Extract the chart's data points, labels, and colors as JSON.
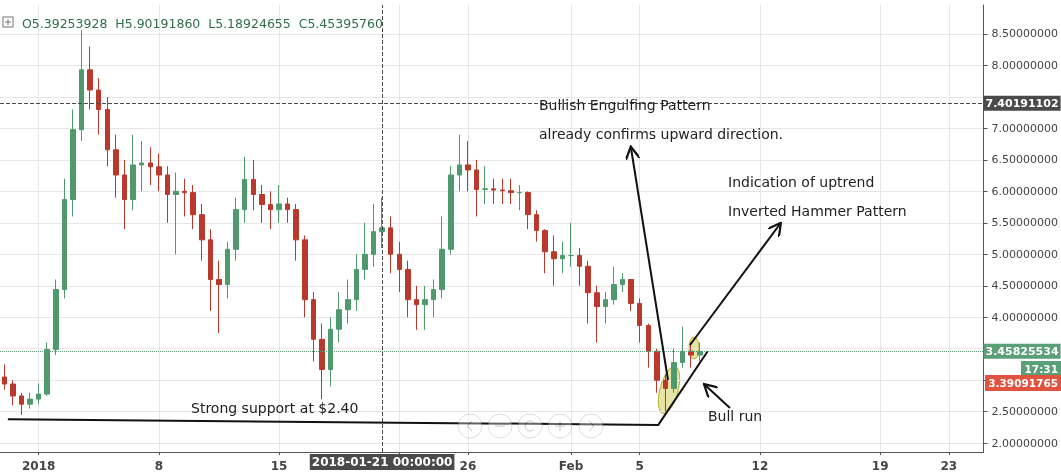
{
  "chart_data": {
    "type": "candlestick",
    "x": [
      "2017-12-30T00:00",
      "2017-12-30T12:00",
      "2017-12-31T00:00",
      "2017-12-31T12:00",
      "2018-01-01T00:00",
      "2018-01-01T12:00",
      "2018-01-02T00:00",
      "2018-01-02T12:00",
      "2018-01-03T00:00",
      "2018-01-03T12:00",
      "2018-01-04T00:00",
      "2018-01-04T12:00",
      "2018-01-05T00:00",
      "2018-01-05T12:00",
      "2018-01-06T00:00",
      "2018-01-06T12:00",
      "2018-01-07T00:00",
      "2018-01-07T12:00",
      "2018-01-08T00:00",
      "2018-01-08T12:00",
      "2018-01-09T00:00",
      "2018-01-09T12:00",
      "2018-01-10T00:00",
      "2018-01-10T12:00",
      "2018-01-11T00:00",
      "2018-01-11T12:00",
      "2018-01-12T00:00",
      "2018-01-12T12:00",
      "2018-01-13T00:00",
      "2018-01-13T12:00",
      "2018-01-14T00:00",
      "2018-01-14T12:00",
      "2018-01-15T00:00",
      "2018-01-15T12:00",
      "2018-01-16T00:00",
      "2018-01-16T12:00",
      "2018-01-17T00:00",
      "2018-01-17T12:00",
      "2018-01-18T00:00",
      "2018-01-18T12:00",
      "2018-01-19T00:00",
      "2018-01-19T12:00",
      "2018-01-20T00:00",
      "2018-01-20T12:00",
      "2018-01-21T00:00",
      "2018-01-21T12:00",
      "2018-01-22T00:00",
      "2018-01-22T12:00",
      "2018-01-23T00:00",
      "2018-01-23T12:00",
      "2018-01-24T00:00",
      "2018-01-24T12:00",
      "2018-01-25T00:00",
      "2018-01-25T12:00",
      "2018-01-26T00:00",
      "2018-01-26T12:00",
      "2018-01-27T00:00",
      "2018-01-27T12:00",
      "2018-01-28T00:00",
      "2018-01-28T12:00",
      "2018-01-29T00:00",
      "2018-01-29T12:00",
      "2018-01-30T00:00",
      "2018-01-30T12:00",
      "2018-01-31T00:00",
      "2018-01-31T12:00",
      "2018-02-01T00:00",
      "2018-02-01T12:00",
      "2018-02-02T00:00",
      "2018-02-02T12:00",
      "2018-02-03T00:00",
      "2018-02-03T12:00",
      "2018-02-04T00:00",
      "2018-02-04T12:00",
      "2018-02-05T00:00",
      "2018-02-05T12:00",
      "2018-02-06T00:00",
      "2018-02-06T12:00",
      "2018-02-07T00:00",
      "2018-02-07T12:00",
      "2018-02-08T00:00",
      "2018-02-08T12:00"
    ],
    "ohlc": [
      [
        3.05,
        3.25,
        2.85,
        2.94
      ],
      [
        2.94,
        3.0,
        2.6,
        2.75
      ],
      [
        2.75,
        2.8,
        2.45,
        2.62
      ],
      [
        2.62,
        2.8,
        2.55,
        2.7
      ],
      [
        2.7,
        2.95,
        2.62,
        2.78
      ],
      [
        2.78,
        3.6,
        2.75,
        3.49
      ],
      [
        3.49,
        4.6,
        3.4,
        4.44
      ],
      [
        4.44,
        6.2,
        4.3,
        5.87
      ],
      [
        5.87,
        7.3,
        5.6,
        6.98
      ],
      [
        6.98,
        8.56,
        6.8,
        7.93
      ],
      [
        7.93,
        8.3,
        7.3,
        7.61
      ],
      [
        7.61,
        7.8,
        6.9,
        7.3
      ],
      [
        7.3,
        7.5,
        6.4,
        6.66
      ],
      [
        6.66,
        6.9,
        5.9,
        6.26
      ],
      [
        6.26,
        6.5,
        5.4,
        5.87
      ],
      [
        5.87,
        6.9,
        5.7,
        6.42
      ],
      [
        6.42,
        6.8,
        6.0,
        6.45
      ],
      [
        6.45,
        6.7,
        6.1,
        6.39
      ],
      [
        6.39,
        6.6,
        6.0,
        6.26
      ],
      [
        6.26,
        6.4,
        5.5,
        5.95
      ],
      [
        5.95,
        6.3,
        5.0,
        6.0
      ],
      [
        6.0,
        6.2,
        5.6,
        5.98
      ],
      [
        5.98,
        6.1,
        5.4,
        5.63
      ],
      [
        5.63,
        5.8,
        4.9,
        5.23
      ],
      [
        5.23,
        5.4,
        4.1,
        4.6
      ],
      [
        4.6,
        4.9,
        3.75,
        4.52
      ],
      [
        4.52,
        5.2,
        4.3,
        5.08
      ],
      [
        5.08,
        5.9,
        4.9,
        5.71
      ],
      [
        5.71,
        6.55,
        5.5,
        6.19
      ],
      [
        6.19,
        6.5,
        5.7,
        5.95
      ],
      [
        5.95,
        6.1,
        5.5,
        5.79
      ],
      [
        5.79,
        6.0,
        5.4,
        5.71
      ],
      [
        5.71,
        6.1,
        5.5,
        5.8
      ],
      [
        5.8,
        5.9,
        5.5,
        5.71
      ],
      [
        5.71,
        5.8,
        4.9,
        5.23
      ],
      [
        5.23,
        5.3,
        4.0,
        4.28
      ],
      [
        4.28,
        4.4,
        3.3,
        3.65
      ],
      [
        3.65,
        3.9,
        2.7,
        3.17
      ],
      [
        3.17,
        4.0,
        2.9,
        3.81
      ],
      [
        3.81,
        4.4,
        3.6,
        4.12
      ],
      [
        4.12,
        4.6,
        3.9,
        4.28
      ],
      [
        4.28,
        5.0,
        4.1,
        4.76
      ],
      [
        4.76,
        5.5,
        4.6,
        5.0
      ],
      [
        5.0,
        5.8,
        4.8,
        5.36
      ],
      [
        5.36,
        5.9,
        5.1,
        5.42
      ],
      [
        5.42,
        5.6,
        4.7,
        5.0
      ],
      [
        5.0,
        5.2,
        4.4,
        4.76
      ],
      [
        4.76,
        4.9,
        4.0,
        4.28
      ],
      [
        4.28,
        4.5,
        3.8,
        4.2
      ],
      [
        4.2,
        4.5,
        3.8,
        4.28
      ],
      [
        4.28,
        4.6,
        4.0,
        4.44
      ],
      [
        4.44,
        5.6,
        4.3,
        5.08
      ],
      [
        5.08,
        6.4,
        5.0,
        6.26
      ],
      [
        6.26,
        6.9,
        6.0,
        6.42
      ],
      [
        6.42,
        6.8,
        6.0,
        6.34
      ],
      [
        6.34,
        6.5,
        5.6,
        6.03
      ],
      [
        6.03,
        6.4,
        5.8,
        6.04
      ],
      [
        6.04,
        6.2,
        5.8,
        6.02
      ],
      [
        6.02,
        6.2,
        5.8,
        6.01
      ],
      [
        6.01,
        6.2,
        5.8,
        5.98
      ],
      [
        5.98,
        6.1,
        5.7,
        5.98
      ],
      [
        5.98,
        6.0,
        5.4,
        5.63
      ],
      [
        5.63,
        5.7,
        5.2,
        5.38
      ],
      [
        5.38,
        5.4,
        4.7,
        5.04
      ],
      [
        5.04,
        5.3,
        4.5,
        4.93
      ],
      [
        4.93,
        5.2,
        4.7,
        4.98
      ],
      [
        4.98,
        5.5,
        4.8,
        4.98
      ],
      [
        4.98,
        5.1,
        4.5,
        4.81
      ],
      [
        4.81,
        4.9,
        3.9,
        4.39
      ],
      [
        4.39,
        4.5,
        3.6,
        4.17
      ],
      [
        4.17,
        4.4,
        3.9,
        4.28
      ],
      [
        4.28,
        4.8,
        4.2,
        4.52
      ],
      [
        4.52,
        4.7,
        4.4,
        4.6
      ],
      [
        4.6,
        4.6,
        4.1,
        4.22
      ],
      [
        4.22,
        4.3,
        3.6,
        3.87
      ],
      [
        3.87,
        3.9,
        3.2,
        3.46
      ],
      [
        3.46,
        3.5,
        2.8,
        3.0
      ],
      [
        3.0,
        3.1,
        2.5,
        2.87
      ],
      [
        2.87,
        3.5,
        2.8,
        3.28
      ],
      [
        3.28,
        3.85,
        3.2,
        3.46
      ],
      [
        3.46,
        3.6,
        3.2,
        3.4
      ],
      [
        3.4,
        3.6,
        3.3,
        3.46
      ]
    ],
    "colors": [
      "#b93a2c",
      "#b93a2c",
      "#b93a2c",
      "#4e9a6c",
      "#4e9a6c",
      "#4e9a6c",
      "#4e9a6c",
      "#4e9a6c",
      "#4e9a6c",
      "#4e9a6c",
      "#b93a2c",
      "#b93a2c",
      "#b93a2c",
      "#b93a2c",
      "#b93a2c",
      "#4e9a6c",
      "#4e9a6c",
      "#b93a2c",
      "#b93a2c",
      "#b93a2c",
      "#4e9a6c",
      "#b93a2c",
      "#b93a2c",
      "#b93a2c",
      "#b93a2c",
      "#b93a2c",
      "#4e9a6c",
      "#4e9a6c",
      "#4e9a6c",
      "#b93a2c",
      "#b93a2c",
      "#b93a2c",
      "#4e9a6c",
      "#b93a2c",
      "#b93a2c",
      "#b93a2c",
      "#b93a2c",
      "#b93a2c",
      "#4e9a6c",
      "#4e9a6c",
      "#4e9a6c",
      "#4e9a6c",
      "#4e9a6c",
      "#4e9a6c",
      "#4e9a6c",
      "#b93a2c",
      "#b93a2c",
      "#b93a2c",
      "#b93a2c",
      "#4e9a6c",
      "#4e9a6c",
      "#4e9a6c",
      "#4e9a6c",
      "#4e9a6c",
      "#b93a2c",
      "#b93a2c",
      "#4e9a6c",
      "#b93a2c",
      "#b93a2c",
      "#b93a2c",
      "#4e9a6c",
      "#b93a2c",
      "#b93a2c",
      "#b93a2c",
      "#b93a2c",
      "#4e9a6c",
      "#4e9a6c",
      "#b93a2c",
      "#b93a2c",
      "#b93a2c",
      "#4e9a6c",
      "#4e9a6c",
      "#4e9a6c",
      "#b93a2c",
      "#b93a2c",
      "#b93a2c",
      "#b93a2c",
      "#b93a2c",
      "#4e9a6c",
      "#4e9a6c",
      "#b93a2c",
      "#4e9a6c"
    ],
    "series": [
      {
        "type": "line",
        "x": [
          "2017-12-30T05:00",
          "2018-02-06T02:00",
          "2018-02-08T23:00"
        ],
        "values": [
          2.38,
          2.29,
          3.46
        ],
        "color": "#111111"
      }
    ],
    "xlim": [
      "2017-12-29T18:00",
      "2018-02-25T00:30"
    ],
    "xticks": [
      {
        "value": "2018-01-01",
        "label": "2018"
      },
      {
        "value": "2018-01-08",
        "label": "8"
      },
      {
        "value": "2018-01-15",
        "label": "15"
      },
      {
        "value": "2018-01-22",
        "label": null
      },
      {
        "value": "2018-01-26",
        "label": "26"
      },
      {
        "value": "2018-02-01",
        "label": "Feb"
      },
      {
        "value": "2018-02-05",
        "label": "5"
      },
      {
        "value": "2018-02-12",
        "label": "12"
      },
      {
        "value": "2018-02-19",
        "label": "19"
      },
      {
        "value": "2018-02-23",
        "label": "23"
      }
    ],
    "ylim": [
      1.86,
      8.96
    ],
    "yticks": [
      {
        "value": 2,
        "label": "2.00000000"
      },
      {
        "value": 2.5,
        "label": "2.50000000"
      },
      {
        "value": 3,
        "label": null
      },
      {
        "value": 3.5,
        "label": null
      },
      {
        "value": 4,
        "label": "4.00000000"
      },
      {
        "value": 4.5,
        "label": "4.50000000"
      },
      {
        "value": 5,
        "label": "5.00000000"
      },
      {
        "value": 5.5,
        "label": "5.50000000"
      },
      {
        "value": 6,
        "label": "6.00000000"
      },
      {
        "value": 6.5,
        "label": "6.50000000"
      },
      {
        "value": 7,
        "label": "7.00000000"
      },
      {
        "value": 7.5,
        "label": null
      },
      {
        "value": 8,
        "label": "8.00000000"
      },
      {
        "value": 8.5,
        "label": "8.50000000"
      }
    ],
    "grid": true,
    "ref_lines": [
      {
        "axis": "y",
        "value": 3.45825534,
        "label": "3.45825534",
        "color": "#5a9f78",
        "line_style": "dotted"
      },
      {
        "axis": "y",
        "value": 7.40191102,
        "label": "7.40191102",
        "color": "#4a4a4a",
        "line_style": "dashed"
      },
      {
        "axis": "x",
        "value": "2018-01-21",
        "label": "2018-01-21 00:00:00",
        "color": "#4a4a4a",
        "line_style": "dashed"
      }
    ],
    "annotations": [
      "O5.39253928  H5.90191860  L5.18924655  C5.45395760",
      "Bullish Engulfing Pattern",
      "already confirms upward direction.",
      "Indication of uptrend",
      "Inverted Hammer Pattern",
      "Strong support at $2.40",
      "Bull run",
      "17:31",
      "3.39091765"
    ]
  }
}
